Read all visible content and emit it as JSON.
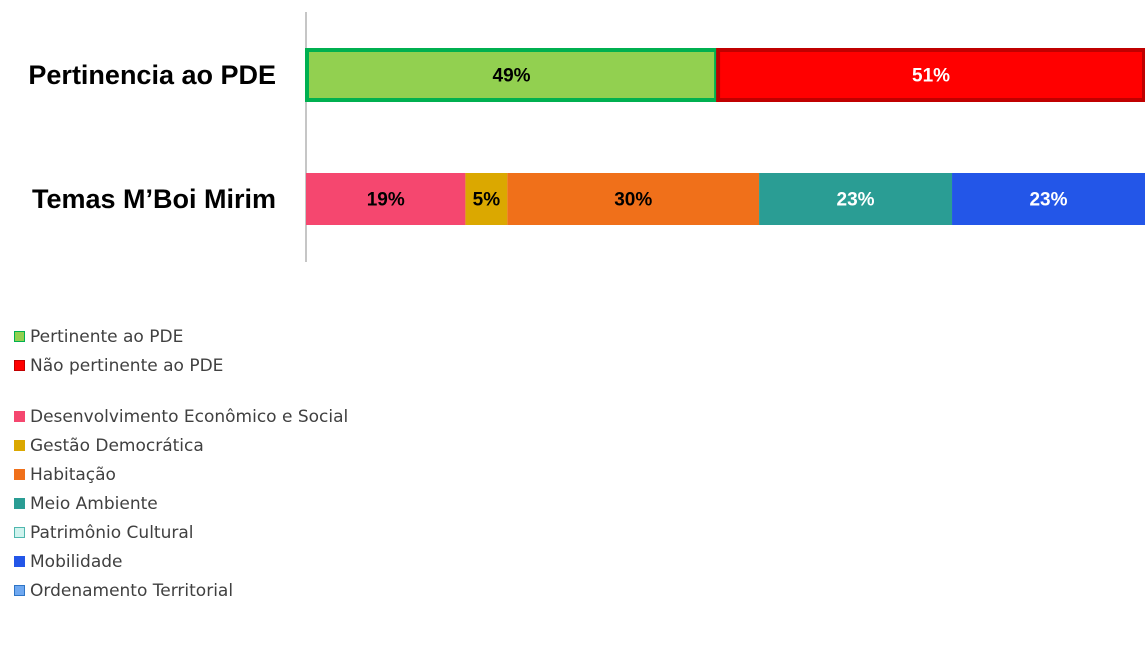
{
  "chart_data": {
    "type": "bar",
    "orientation": "horizontal",
    "stacked": true,
    "percent_stacked": true,
    "categories": [
      "Pertinencia ao PDE",
      "Temas M’Boi Mirim"
    ],
    "series": [
      {
        "name": "Pertinente ao PDE",
        "category": "Pertinencia ao PDE",
        "value": 49,
        "label": "49%",
        "color": "#92D050",
        "border": "#00B050",
        "label_color": "#000000"
      },
      {
        "name": "Não pertinente ao PDE",
        "category": "Pertinencia ao PDE",
        "value": 51,
        "label": "51%",
        "color": "#FF0000",
        "border": "#C00000",
        "label_color": "#FFFFFF"
      },
      {
        "name": "Desenvolvimento Econômico e Social",
        "category": "Temas M’Boi Mirim",
        "value": 19,
        "label": "19%",
        "color": "#F5476F",
        "label_color": "#000000"
      },
      {
        "name": "Gestão Democrática",
        "category": "Temas M’Boi Mirim",
        "value": 5,
        "label": "5%",
        "color": "#DBA800",
        "label_color": "#000000"
      },
      {
        "name": "Habitação",
        "category": "Temas M’Boi Mirim",
        "value": 30,
        "label": "30%",
        "color": "#F0701A",
        "label_color": "#000000"
      },
      {
        "name": "Meio Ambiente",
        "category": "Temas M’Boi Mirim",
        "value": 23,
        "label": "23%",
        "color": "#2A9D94",
        "label_color": "#FFFFFF"
      },
      {
        "name": "Patrimônio Cultural",
        "category": "Temas M’Boi Mirim",
        "value": 0,
        "label": "",
        "color": "#CFF3EE",
        "border": "#4FB7AE",
        "label_color": "#000000"
      },
      {
        "name": "Mobilidade",
        "category": "Temas M’Boi Mirim",
        "value": 23,
        "label": "23%",
        "color": "#2356E8",
        "label_color": "#FFFFFF"
      },
      {
        "name": "Ordenamento Territorial",
        "category": "Temas M’Boi Mirim",
        "value": 0,
        "label": "",
        "color": "#6FA8F0",
        "border": "#2E75C6",
        "label_color": "#000000"
      }
    ],
    "xlim": [
      0,
      100
    ],
    "grid": false,
    "legend_position": "bottom-left"
  },
  "legend": {
    "groups": [
      [
        {
          "label": "Pertinente ao PDE",
          "color": "#92D050",
          "border": "#00B050"
        },
        {
          "label": "Não pertinente ao PDE",
          "color": "#FF0000",
          "border": "#C00000"
        }
      ],
      [
        {
          "label": "Desenvolvimento Econômico e Social",
          "color": "#F5476F",
          "border": "#F5476F"
        },
        {
          "label": "Gestão Democrática",
          "color": "#DBA800",
          "border": "#DBA800"
        },
        {
          "label": "Habitação",
          "color": "#F0701A",
          "border": "#F0701A"
        },
        {
          "label": "Meio Ambiente",
          "color": "#2A9D94",
          "border": "#2A9D94"
        },
        {
          "label": "Patrimônio Cultural",
          "color": "#CFF3EE",
          "border": "#4FB7AE"
        },
        {
          "label": "Mobilidade",
          "color": "#2356E8",
          "border": "#2356E8"
        },
        {
          "label": "Ordenamento Territorial",
          "color": "#6FA8F0",
          "border": "#2E75C6"
        }
      ]
    ]
  }
}
